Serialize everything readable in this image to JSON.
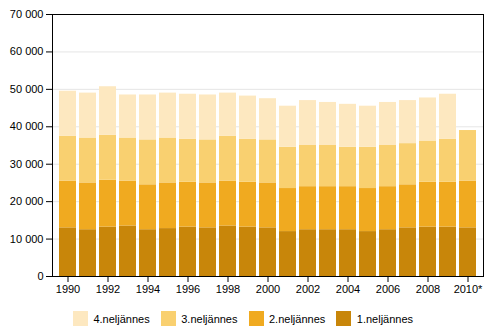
{
  "chart_data": {
    "type": "bar",
    "stacked": true,
    "categories": [
      "1990",
      null,
      "1992",
      null,
      "1994",
      null,
      "1996",
      null,
      "1998",
      null,
      "2000",
      null,
      "2002",
      null,
      "2004",
      null,
      "2006",
      null,
      "2008",
      null,
      "2010*"
    ],
    "series": [
      {
        "name": "1.neljännes",
        "color": "#C8860A",
        "values": [
          13000,
          12500,
          13200,
          13500,
          12500,
          12800,
          13200,
          13000,
          13500,
          13200,
          13000,
          12000,
          12500,
          12500,
          12500,
          12000,
          12500,
          13000,
          13200,
          13200,
          13000
        ]
      },
      {
        "name": "2.neljännes",
        "color": "#F0AA20",
        "values": [
          12500,
          12500,
          12500,
          12000,
          12000,
          12200,
          12000,
          12000,
          12000,
          12000,
          12000,
          11500,
          11500,
          11500,
          11500,
          11500,
          11500,
          11500,
          12000,
          12000,
          12500
        ]
      },
      {
        "name": "3.neljännes",
        "color": "#F9D070",
        "values": [
          12000,
          12000,
          12000,
          11500,
          12000,
          12000,
          11500,
          11500,
          12000,
          11500,
          11500,
          11000,
          11000,
          11000,
          10500,
          11000,
          11000,
          11000,
          11000,
          11500,
          13500
        ]
      },
      {
        "name": "4.neljännes",
        "color": "#FDE8C0",
        "values": [
          12000,
          12000,
          13000,
          11500,
          12000,
          12000,
          12000,
          12000,
          11500,
          11500,
          11000,
          11000,
          12000,
          11500,
          11500,
          11000,
          11500,
          11500,
          11500,
          12000,
          0
        ]
      }
    ],
    "ylim": [
      0,
      70000
    ],
    "yticks": [
      0,
      {
        "value": 10000,
        "label": "10 000"
      },
      {
        "value": 20000,
        "label": "20 000"
      },
      {
        "value": 30000,
        "label": "30 000"
      },
      {
        "value": 40000,
        "label": "40 000"
      },
      {
        "value": 50000,
        "label": "50 000"
      },
      {
        "value": 60000,
        "label": "60 000"
      },
      {
        "value": 70000,
        "label": "70 000"
      }
    ],
    "grid": true,
    "legend": "bottom"
  }
}
